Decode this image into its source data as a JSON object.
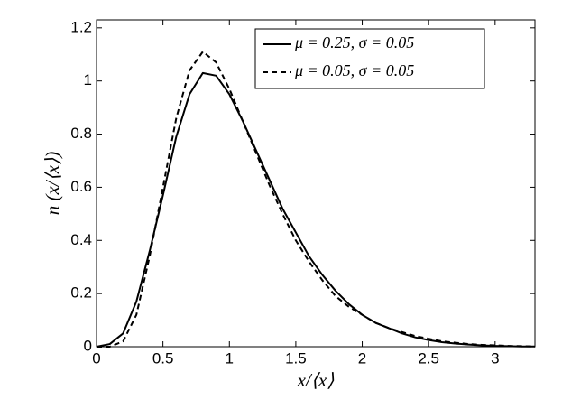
{
  "chart_data": {
    "type": "line",
    "xlabel": "x/⟨x⟩",
    "ylabel": "n (x/⟨x⟩)",
    "x": [
      0,
      0.1,
      0.2,
      0.3,
      0.4,
      0.5,
      0.6,
      0.7,
      0.8,
      0.9,
      1.0,
      1.1,
      1.2,
      1.3,
      1.4,
      1.5,
      1.6,
      1.7,
      1.8,
      1.9,
      2.0,
      2.1,
      2.2,
      2.3,
      2.4,
      2.5,
      2.6,
      2.7,
      2.8,
      2.9,
      3.0,
      3.1,
      3.2,
      3.3
    ],
    "series": [
      {
        "name": "μ  = 0.25, σ  = 0.05",
        "color": "#000000",
        "dash": "solid",
        "values": [
          0,
          0.01,
          0.05,
          0.17,
          0.36,
          0.57,
          0.79,
          0.95,
          1.03,
          1.02,
          0.95,
          0.85,
          0.74,
          0.63,
          0.52,
          0.43,
          0.34,
          0.27,
          0.21,
          0.16,
          0.12,
          0.09,
          0.07,
          0.05,
          0.035,
          0.025,
          0.017,
          0.012,
          0.008,
          0.005,
          0.003,
          0.002,
          0.001,
          0.001
        ]
      },
      {
        "name": "μ  = 0.05, σ  = 0.05",
        "color": "#000000",
        "dash": "dashed",
        "values": [
          0,
          0.0,
          0.02,
          0.12,
          0.34,
          0.6,
          0.86,
          1.04,
          1.11,
          1.07,
          0.97,
          0.85,
          0.73,
          0.61,
          0.5,
          0.4,
          0.32,
          0.25,
          0.19,
          0.15,
          0.12,
          0.09,
          0.07,
          0.055,
          0.04,
          0.03,
          0.02,
          0.015,
          0.01,
          0.007,
          0.005,
          0.003,
          0.002,
          0.001
        ]
      }
    ],
    "xlim": [
      0,
      3.3
    ],
    "xticks": [
      0,
      0.5,
      1,
      1.5,
      2,
      2.5,
      3
    ],
    "ylim": [
      0,
      1.23
    ],
    "yticks": [
      0,
      0.2,
      0.4,
      0.6,
      0.8,
      1,
      1.2
    ],
    "grid": false,
    "legend": "upper right"
  }
}
